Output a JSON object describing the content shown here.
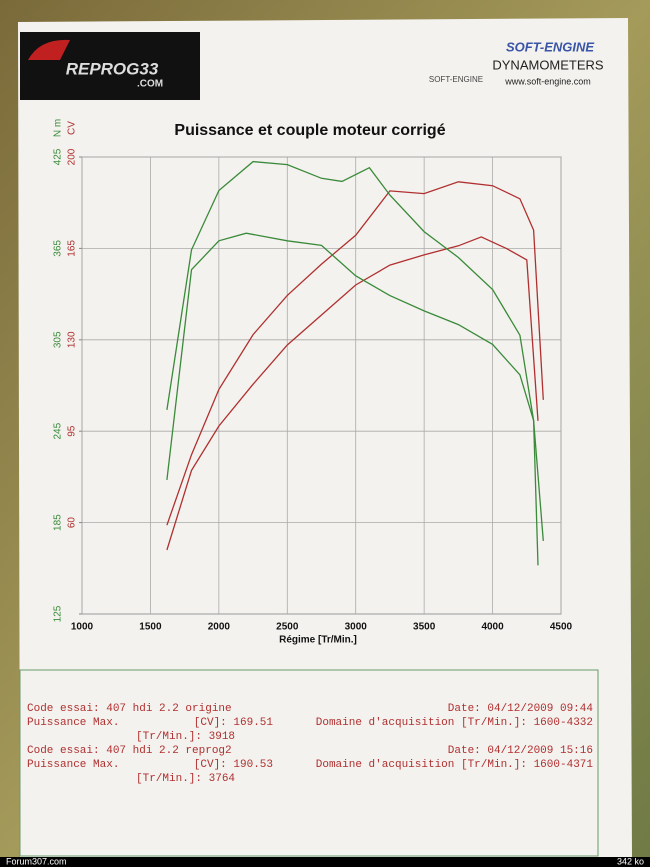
{
  "chart_data": {
    "type": "line",
    "title": "Puissance et couple moteur corrigé",
    "x_label": "Régime [Tr/Min.]",
    "y_label": "CV",
    "y2_label": "N m",
    "xlim": [
      1000,
      4500
    ],
    "xticks": [
      1000,
      1500,
      2000,
      2500,
      3000,
      3500,
      4000,
      4500
    ],
    "ylim": [
      25,
      200
    ],
    "yticks": [
      60,
      95,
      130,
      165,
      200
    ],
    "y2lim": [
      125,
      425
    ],
    "y2ticks": [
      125,
      185,
      245,
      305,
      365,
      425
    ],
    "grid": true,
    "y_color": "#b03030",
    "y2_color": "#3a8a3a",
    "series": [
      {
        "color": "#b03030",
        "x": [
          1620,
          1800,
          2000,
          2250,
          2500,
          2750,
          3000,
          3250,
          3500,
          3750,
          4000,
          4200,
          4300,
          4371
        ],
        "values": [
          59,
          86,
          111,
          132,
          147,
          159,
          170,
          187,
          186,
          190.5,
          189,
          184,
          172,
          107
        ]
      },
      {
        "color": "#b03030",
        "x": [
          1620,
          1800,
          2000,
          2250,
          2500,
          2750,
          3000,
          3250,
          3500,
          3750,
          3918,
          4100,
          4250,
          4332
        ],
        "values": [
          49.5,
          80,
          97,
          113,
          128,
          139.5,
          151,
          158.6,
          162.5,
          166,
          169.4,
          165,
          160.6,
          99
        ]
      },
      {
        "color": "#3a8a3a",
        "axis": "y2",
        "x": [
          1620,
          1800,
          2000,
          2250,
          2500,
          2750,
          2900,
          3100,
          3250,
          3500,
          3750,
          4000,
          4200,
          4300,
          4371
        ],
        "values": [
          259,
          364,
          403,
          422,
          420,
          411,
          409,
          418,
          400,
          376,
          359,
          338,
          308,
          252,
          173
        ]
      },
      {
        "color": "#3a8a3a",
        "axis": "y2",
        "x": [
          1620,
          1800,
          2000,
          2200,
          2500,
          2750,
          3000,
          3250,
          3500,
          3750,
          4000,
          4200,
          4300,
          4332
        ],
        "values": [
          213,
          351,
          370,
          375,
          370,
          367,
          347,
          334,
          324,
          315,
          302,
          282,
          252,
          157
        ]
      }
    ]
  },
  "header": {
    "logo": "REPROG33",
    "logo_sub": ".COM",
    "brand": "SOFT-ENGINE",
    "brand_small": "SOFT-ENGINE",
    "product": "DYNAMOMETERS",
    "url": "www.soft-engine.com"
  },
  "info": {
    "tests": [
      {
        "code": "Code essai: 407 hdi 2.2 origine",
        "date": "Date: 04/12/2009 09:44",
        "power_label": "Puissance Max.",
        "power": "[CV]: 169.51",
        "acquisition": "Domaine d'acquisition [Tr/Min.]: 1600-4332",
        "rpm": "[Tr/Min.]: 3918"
      },
      {
        "code": "Code essai: 407 hdi 2.2 reprog2",
        "date": "Date: 04/12/2009 15:16",
        "power_label": "Puissance Max.",
        "power": "[CV]: 190.53",
        "acquisition": "Domaine d'acquisition [Tr/Min.]: 1600-4371",
        "rpm": "[Tr/Min.]: 3764"
      }
    ]
  },
  "footer": {
    "left": "Forum307.com",
    "right": "342 ko"
  }
}
